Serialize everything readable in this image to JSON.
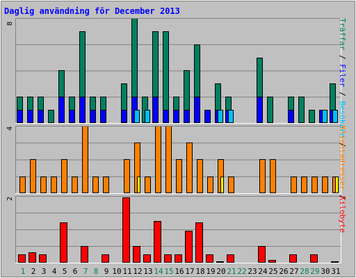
{
  "chart_data": {
    "type": "bar",
    "title": "Daglig användning för December 2013",
    "categories": [
      "1",
      "2",
      "3",
      "4",
      "5",
      "6",
      "7",
      "8",
      "9",
      "10",
      "11",
      "12",
      "13",
      "14",
      "15",
      "16",
      "17",
      "18",
      "19",
      "20",
      "21",
      "22",
      "23",
      "24",
      "25",
      "26",
      "27",
      "28",
      "29",
      "30",
      "31"
    ],
    "weekend_days": [
      "1",
      "7",
      "8",
      "14",
      "15",
      "21",
      "22",
      "28",
      "29"
    ],
    "colors": {
      "traffar": "#008060",
      "filer": "#0000ff",
      "besokare": "#00c0ff",
      "klientadresser": "#ff8000",
      "klientadresser_alt": "#ffff00",
      "kilobyte": "#ff0000",
      "weekend_label": "#008060",
      "weekday_label": "#000000",
      "title": "#0000ff"
    },
    "panels": [
      {
        "id": "hits",
        "ymax": 8,
        "ymax_label": "8",
        "series": [
          {
            "name": "Träffar",
            "values": [
              2,
              2,
              2,
              1,
              4,
              2,
              7,
              2,
              2,
              0,
              3,
              8,
              2,
              7,
              7,
              2,
              4,
              6,
              1,
              3,
              2,
              0,
              0,
              5,
              2,
              0,
              2,
              2,
              1,
              1,
              3
            ]
          },
          {
            "name": "Filer",
            "values": [
              1,
              1,
              1,
              0,
              2,
              1,
              2,
              1,
              1,
              0,
              1,
              2,
              0,
              2,
              1,
              1,
              1,
              2,
              1,
              1,
              1,
              0,
              0,
              2,
              0,
              0,
              1,
              0,
              0,
              1,
              1
            ]
          },
          {
            "name": "Besökare",
            "values": [
              0,
              0,
              0,
              0,
              0,
              0,
              0,
              0,
              0,
              0,
              0,
              1,
              1,
              0,
              0,
              0,
              0,
              0,
              0,
              1,
              1,
              0,
              0,
              0,
              0,
              0,
              0,
              0,
              0,
              1,
              1
            ]
          }
        ],
        "right_label": [
          {
            "text": "Träffar",
            "color": "#008060"
          },
          {
            "text": " / ",
            "color": "#000000"
          },
          {
            "text": "Filer",
            "color": "#0000ff"
          },
          {
            "text": " / ",
            "color": "#000000"
          },
          {
            "text": "Besökare",
            "color": "#00c0ff"
          },
          {
            "text": " / ",
            "color": "#000000"
          }
        ]
      },
      {
        "id": "sites",
        "ymax": 4,
        "ymax_label": "4",
        "series": [
          {
            "name": "Klientadresser",
            "values": [
              1,
              2,
              1,
              1,
              2,
              1,
              4,
              1,
              1,
              0,
              2,
              3,
              1,
              4,
              4,
              2,
              3,
              2,
              1,
              2,
              1,
              0,
              0,
              2,
              2,
              0,
              1,
              1,
              1,
              1,
              1
            ]
          },
          {
            "name": "Klientadresser (markerad)",
            "values": [
              0,
              0,
              0,
              0,
              0,
              0,
              0,
              0,
              0,
              0,
              0,
              1,
              0,
              0,
              0,
              0,
              0,
              0,
              0,
              1,
              0,
              0,
              0,
              0,
              0,
              0,
              0,
              0,
              0,
              0,
              1
            ]
          }
        ],
        "right_label": [
          {
            "text": "Klientadresser",
            "color": "#ff8000"
          },
          {
            "text": " / ",
            "color": "#000000"
          }
        ]
      },
      {
        "id": "kbytes",
        "ymax": 2,
        "ymax_label": "2",
        "series": [
          {
            "name": "Kilobyte",
            "values": [
              0.25,
              0.32,
              0.25,
              0,
              1.2,
              0,
              0.5,
              0,
              0.25,
              0,
              1.95,
              0.5,
              0.25,
              1.25,
              0.25,
              0.25,
              0.95,
              1.2,
              0.25,
              0.04,
              0.25,
              0,
              0,
              0.5,
              0.08,
              0,
              0.25,
              0,
              0.25,
              0,
              0.04
            ]
          }
        ],
        "right_label": [
          {
            "text": "Kilobyte",
            "color": "#ff0000"
          }
        ]
      }
    ]
  }
}
